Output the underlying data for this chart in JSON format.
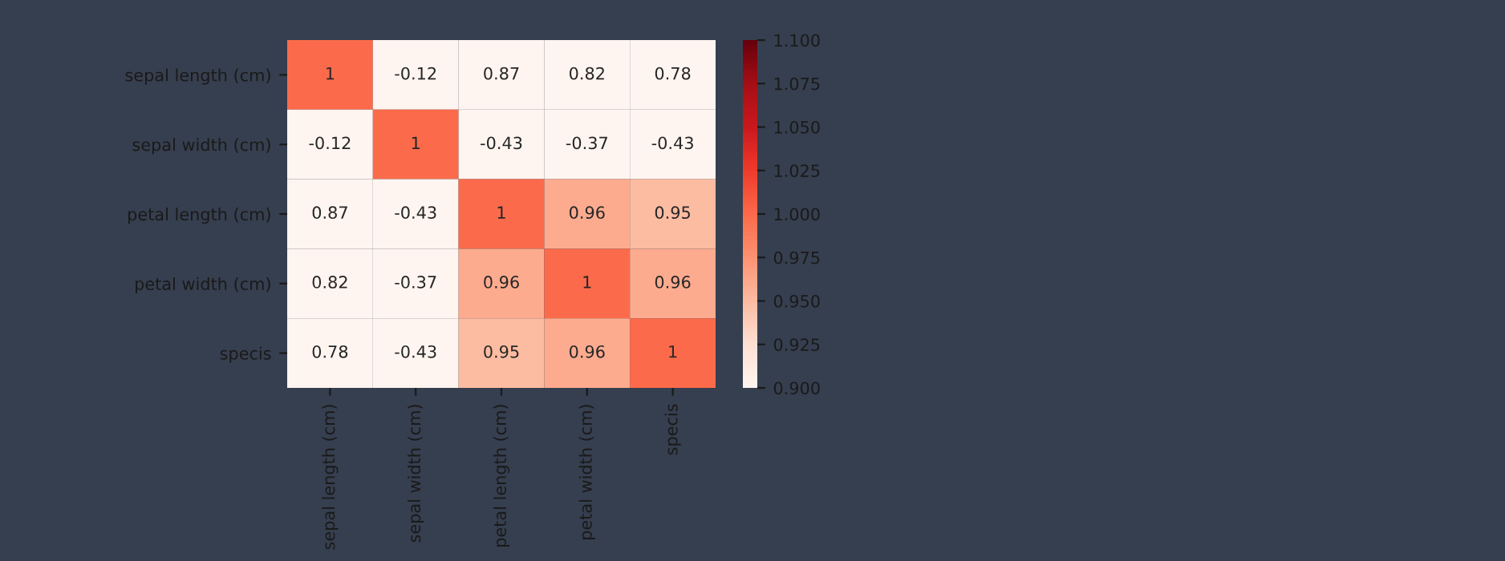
{
  "chart_data": {
    "type": "heatmap",
    "categories": [
      "sepal length (cm)",
      "sepal width (cm)",
      "petal length (cm)",
      "petal width (cm)",
      "specis"
    ],
    "y_categories": [
      "sepal length (cm)",
      "sepal width (cm)",
      "petal length (cm)",
      "petal width (cm)",
      "specis"
    ],
    "cells": [
      [
        1,
        -0.12,
        0.87,
        0.82,
        0.78
      ],
      [
        -0.12,
        1,
        -0.43,
        -0.37,
        -0.43
      ],
      [
        0.87,
        -0.43,
        1,
        0.96,
        0.95
      ],
      [
        0.82,
        -0.37,
        0.96,
        1,
        0.96
      ],
      [
        0.78,
        -0.43,
        0.95,
        0.96,
        1
      ]
    ],
    "cell_labels": [
      [
        "1",
        "-0.12",
        "0.87",
        "0.82",
        "0.78"
      ],
      [
        "-0.12",
        "1",
        "-0.43",
        "-0.37",
        "-0.43"
      ],
      [
        "0.87",
        "-0.43",
        "1",
        "0.96",
        "0.95"
      ],
      [
        "0.82",
        "-0.37",
        "0.96",
        "1",
        "0.96"
      ],
      [
        "0.78",
        "-0.43",
        "0.95",
        "0.96",
        "1"
      ]
    ],
    "clim": [
      0.9,
      1.1
    ],
    "cticks": [
      {
        "value": 0.9,
        "label": "0.900"
      },
      {
        "value": 0.925,
        "label": "0.925"
      },
      {
        "value": 0.95,
        "label": "0.950"
      },
      {
        "value": 0.975,
        "label": "0.975"
      },
      {
        "value": 1.0,
        "label": "1.000"
      },
      {
        "value": 1.025,
        "label": "1.025"
      },
      {
        "value": 1.05,
        "label": "1.050"
      },
      {
        "value": 1.075,
        "label": "1.075"
      },
      {
        "value": 1.1,
        "label": "1.100"
      }
    ]
  }
}
